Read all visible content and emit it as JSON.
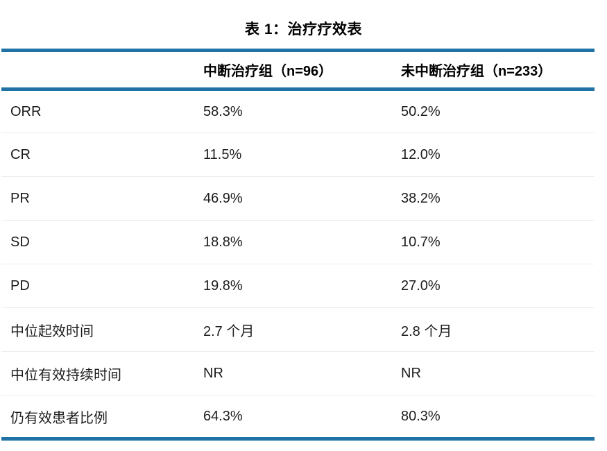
{
  "page": {
    "title": "表 1：治疗疗效表"
  },
  "table": {
    "columns": {
      "label_header": "",
      "group1_header": "中断治疗组（n=96）",
      "group2_header": "未中断治疗组（n=233）"
    },
    "rows": [
      {
        "label": "ORR",
        "group1": "58.3%",
        "group2": "50.2%"
      },
      {
        "label": "CR",
        "group1": "11.5%",
        "group2": "12.0%"
      },
      {
        "label": "PR",
        "group1": "46.9%",
        "group2": "38.2%"
      },
      {
        "label": "SD",
        "group1": "18.8%",
        "group2": "10.7%"
      },
      {
        "label": "PD",
        "group1": "19.8%",
        "group2": "27.0%"
      },
      {
        "label": "中位起效时间",
        "group1": "2.7 个月",
        "group2": "2.8 个月"
      },
      {
        "label": "中位有效持续时间",
        "group1": "NR",
        "group2": "NR"
      },
      {
        "label": "仍有效患者比例",
        "group1": "64.3%",
        "group2": "80.3%"
      }
    ]
  },
  "chart_data": {
    "type": "table",
    "title": "表 1：治疗疗效表",
    "columns": [
      "",
      "中断治疗组（n=96）",
      "未中断治疗组（n=233）"
    ],
    "rows": [
      [
        "ORR",
        "58.3%",
        "50.2%"
      ],
      [
        "CR",
        "11.5%",
        "12.0%"
      ],
      [
        "PR",
        "46.9%",
        "38.2%"
      ],
      [
        "SD",
        "18.8%",
        "10.7%"
      ],
      [
        "PD",
        "19.8%",
        "27.0%"
      ],
      [
        "中位起效时间",
        "2.7 个月",
        "2.8 个月"
      ],
      [
        "中位有效持续时间",
        "NR",
        "NR"
      ],
      [
        "仍有效患者比例",
        "64.3%",
        "80.3%"
      ]
    ]
  },
  "colors": {
    "accent_line": "#2173a6",
    "row_divider": "#ececec",
    "text": "#1c1c1c"
  }
}
